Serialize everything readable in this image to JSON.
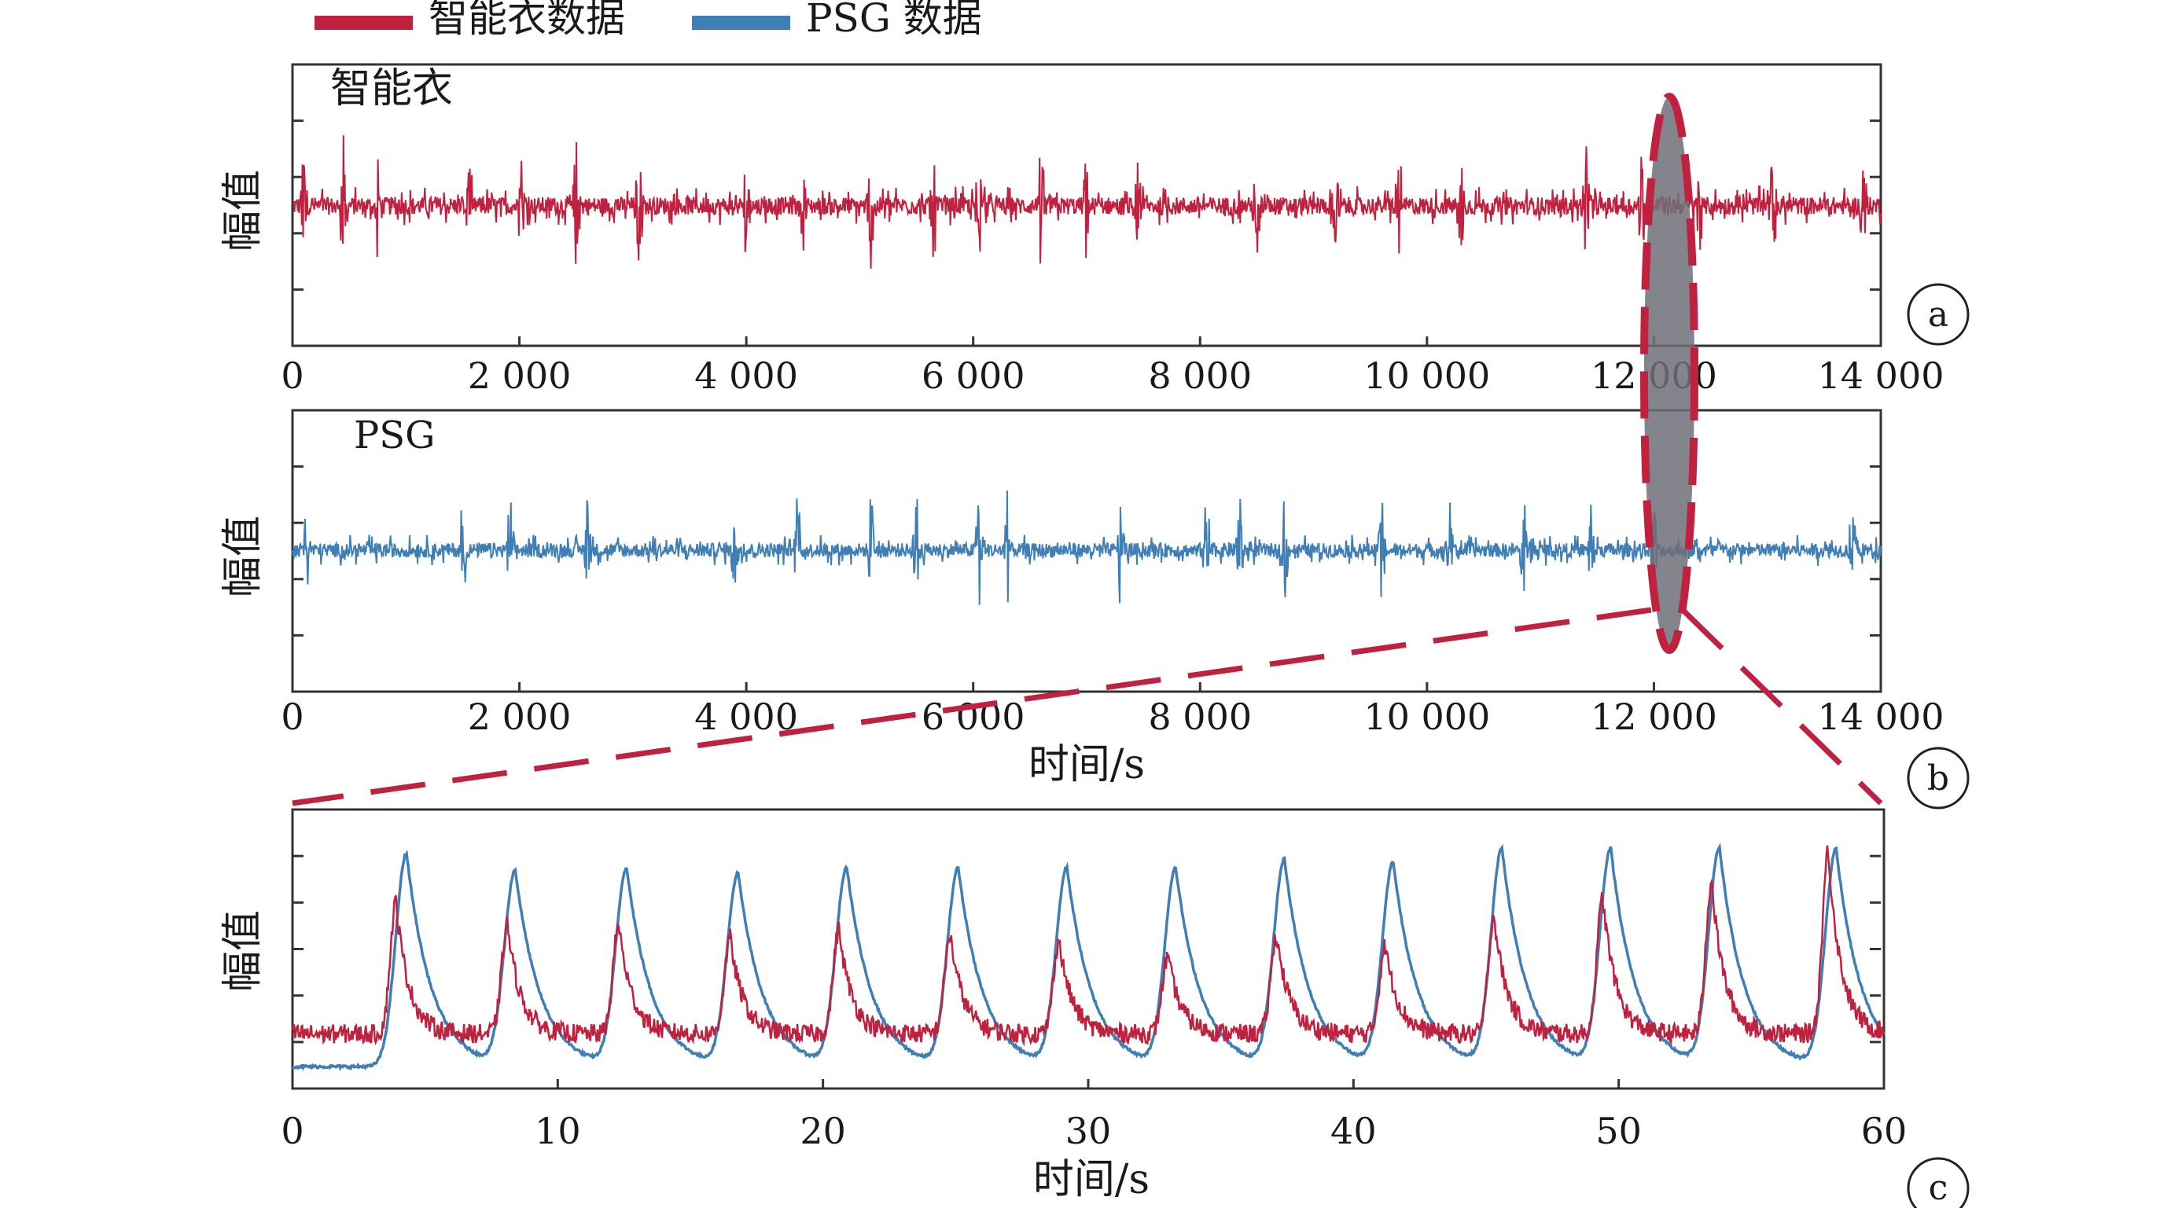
{
  "legend": {
    "items": [
      {
        "label": "智能衣数据",
        "color": "#c0213f"
      },
      {
        "label": "PSG 数据",
        "color": "#3f7fb5"
      }
    ]
  },
  "chart_data": [
    {
      "type": "line",
      "panel": "a",
      "title": "智能衣",
      "ylabel": "幅值",
      "xlabel": "",
      "xlim": [
        0,
        14000
      ],
      "x_ticks": [
        "0",
        "2 000",
        "4 000",
        "6 000",
        "8 000",
        "10 000",
        "12 000",
        "14 000"
      ],
      "series": [
        {
          "name": "智能衣数据",
          "color": "#c0213f",
          "baseline": 0,
          "noise_amplitude": 0.06,
          "spike_times": [
            100,
            450,
            750,
            1550,
            2020,
            2500,
            3050,
            4000,
            4500,
            5100,
            5650,
            6050,
            6600,
            7000,
            7450,
            8500,
            9200,
            9750,
            10300,
            11400,
            11900,
            12400,
            13050,
            13850
          ]
        }
      ],
      "ylim": [
        -1,
        1
      ]
    },
    {
      "type": "line",
      "panel": "b",
      "title": "PSG",
      "ylabel": "幅值",
      "xlabel": "时间/s",
      "xlim": [
        0,
        14000
      ],
      "x_ticks": [
        "0",
        "2 000",
        "4 000",
        "6 000",
        "8 000",
        "10 000",
        "12 000",
        "14 000"
      ],
      "series": [
        {
          "name": "PSG 数据",
          "color": "#3f7fb5",
          "baseline": 0,
          "noise_amplitude": 0.05,
          "spike_times": [
            120,
            1500,
            1920,
            2600,
            3900,
            4450,
            5100,
            5500,
            6050,
            6300,
            7300,
            8050,
            8350,
            8750,
            9600,
            10200,
            10850,
            11450,
            12000,
            13750
          ]
        }
      ],
      "ylim": [
        -1,
        1
      ]
    },
    {
      "type": "line",
      "panel": "c",
      "title": "",
      "ylabel": "幅值",
      "xlabel": "时间/s",
      "xlim": [
        0,
        60
      ],
      "x_ticks": [
        "0",
        "10",
        "20",
        "30",
        "40",
        "50",
        "60"
      ],
      "ylim": [
        0,
        1
      ],
      "series": [
        {
          "name": "智能衣数据",
          "color": "#c0213f",
          "peak_times": [
            3.9,
            8.1,
            12.3,
            16.5,
            20.6,
            24.8,
            28.9,
            33.0,
            37.1,
            41.2,
            45.3,
            49.4,
            53.5,
            57.9
          ],
          "peak_values": [
            0.68,
            0.6,
            0.6,
            0.55,
            0.58,
            0.56,
            0.54,
            0.48,
            0.56,
            0.52,
            0.63,
            0.7,
            0.76,
            0.87
          ],
          "base_value": 0.2
        },
        {
          "name": "PSG 数据",
          "color": "#3f7fb5",
          "peak_times": [
            4.3,
            8.4,
            12.6,
            16.8,
            20.9,
            25.1,
            29.2,
            33.3,
            37.4,
            41.5,
            45.6,
            49.7,
            53.8,
            58.2
          ],
          "peak_values": [
            0.86,
            0.79,
            0.8,
            0.78,
            0.8,
            0.8,
            0.8,
            0.8,
            0.83,
            0.82,
            0.87,
            0.87,
            0.87,
            0.87
          ],
          "base_value": 0.08
        }
      ]
    }
  ],
  "panel_labels": [
    "a",
    "b",
    "c"
  ],
  "highlight": {
    "center_time": 12000,
    "color": "#c0213f"
  }
}
